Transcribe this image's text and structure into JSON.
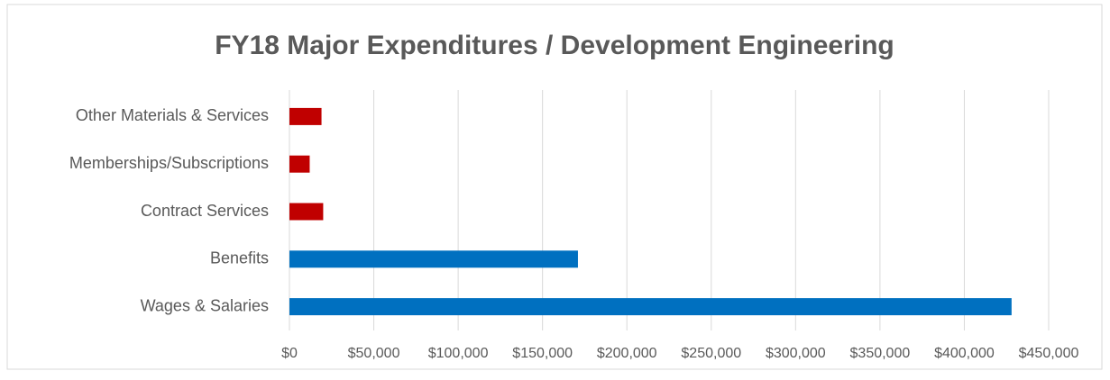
{
  "chart_data": {
    "type": "bar",
    "orientation": "horizontal",
    "title": "FY18 Major Expenditures / Development Engineering",
    "categories": [
      "Wages & Salaries",
      "Benefits",
      "Contract Services",
      "Memberships/Subscriptions",
      "Other Materials & Services"
    ],
    "values": [
      428000,
      171000,
      20000,
      12000,
      19000
    ],
    "colors": [
      "#0070c0",
      "#0070c0",
      "#c00000",
      "#c00000",
      "#c00000"
    ],
    "xlim": [
      0,
      450000
    ],
    "xticks": [
      {
        "value": 0,
        "label": "$0"
      },
      {
        "value": 50000,
        "label": "$50,000"
      },
      {
        "value": 100000,
        "label": "$100,000"
      },
      {
        "value": 150000,
        "label": "$150,000"
      },
      {
        "value": 200000,
        "label": "$200,000"
      },
      {
        "value": 250000,
        "label": "$250,000"
      },
      {
        "value": 300000,
        "label": "$300,000"
      },
      {
        "value": 350000,
        "label": "$350,000"
      },
      {
        "value": 400000,
        "label": "$400,000"
      },
      {
        "value": 450000,
        "label": "$450,000"
      }
    ],
    "grid": true
  }
}
